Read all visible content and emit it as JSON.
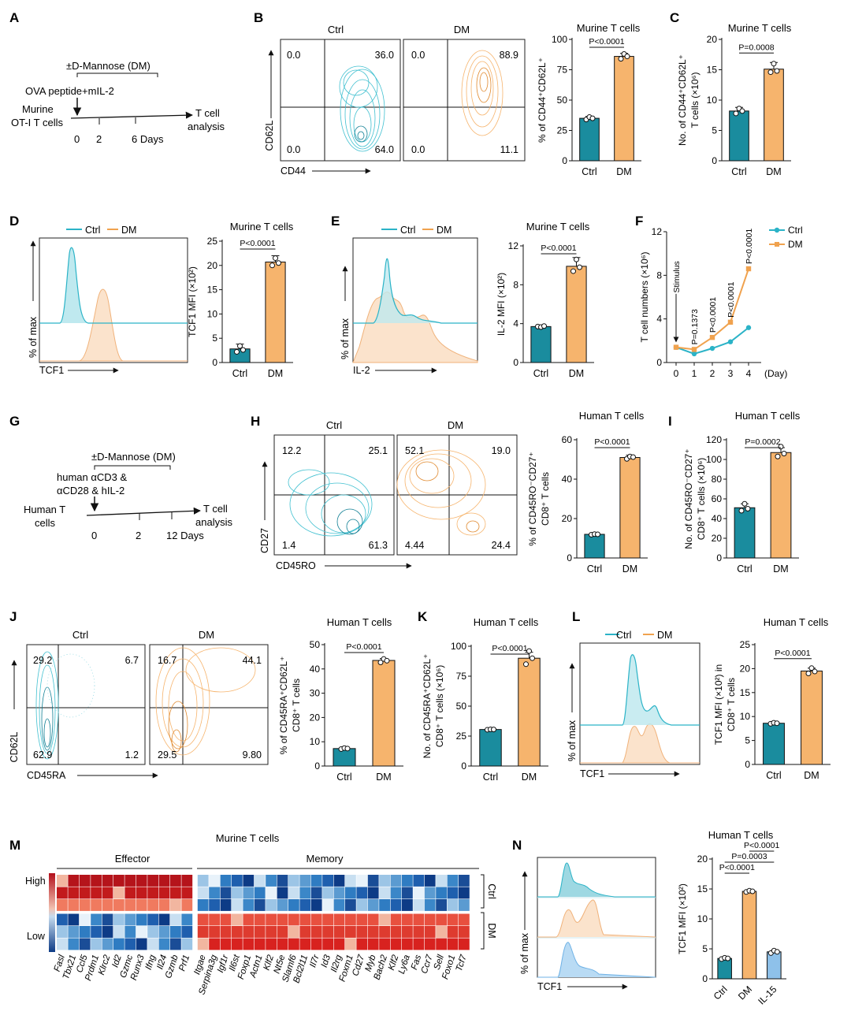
{
  "colors": {
    "ctrl": "#1a8c9e",
    "dm": "#f6b46d",
    "il15": "#8ec1ea",
    "ctrl_curve": "#2bb3c7",
    "dm_curve": "#f0a24e",
    "heat_high": "#c01818",
    "heat_low": "#0e3d8a"
  },
  "panels": {
    "A": {
      "letter": "A",
      "treatment": "±D-Mannose (DM)",
      "stimulus": "OVA peptide+mIL-2",
      "cells_line1": "Murine",
      "cells_line2": "OT-I T cells",
      "outcome_line1": "T cell",
      "outcome_line2": "analysis",
      "ticks": [
        "0",
        "2",
        "6 Days"
      ]
    },
    "B": {
      "letter": "B",
      "flow_titles": [
        "Ctrl",
        "DM"
      ],
      "xlab": "CD44",
      "ylab": "CD62L",
      "quadrants": [
        [
          "0.0",
          "36.0",
          "0.0",
          "64.0"
        ],
        [
          "0.0",
          "88.9",
          "0.0",
          "11.1"
        ]
      ]
    },
    "C": {
      "letter": "C"
    },
    "D": {
      "letter": "D",
      "legend": [
        "Ctrl",
        "DM"
      ],
      "xlab": "TCF1",
      "ylab": "% of max"
    },
    "E": {
      "letter": "E",
      "legend": [
        "Ctrl",
        "DM"
      ],
      "xlab": "IL-2",
      "ylab": "% of max"
    },
    "F": {
      "letter": "F"
    },
    "G": {
      "letter": "G",
      "treatment": "±D-Mannose (DM)",
      "stim1": "human αCD3 &",
      "stim2": "αCD28 & hIL-2",
      "cells_line1": "Human T",
      "cells_line2": "cells",
      "outcome_line1": "T cell",
      "outcome_line2": "analysis",
      "ticks": [
        "0",
        "2",
        "12  Days"
      ]
    },
    "H": {
      "letter": "H",
      "flow_titles": [
        "Ctrl",
        "DM"
      ],
      "xlab": "CD45RO",
      "ylab": "CD27",
      "quadrants": [
        [
          "12.2",
          "25.1",
          "1.4",
          "61.3"
        ],
        [
          "52.1",
          "19.0",
          "4.44",
          "24.4"
        ]
      ]
    },
    "I": {
      "letter": "I"
    },
    "J": {
      "letter": "J",
      "flow_titles": [
        "Ctrl",
        "DM"
      ],
      "xlab": "CD45RA",
      "ylab": "CD62L",
      "quadrants": [
        [
          "29.2",
          "6.7",
          "62.9",
          "1.2"
        ],
        [
          "16.7",
          "44.1",
          "29.5",
          "9.80"
        ]
      ]
    },
    "K": {
      "letter": "K"
    },
    "L": {
      "letter": "L",
      "legend": [
        "Ctrl",
        "DM"
      ],
      "xlab": "TCF1",
      "ylab": "% of max"
    },
    "M": {
      "letter": "M",
      "title": "Murine T cells",
      "effector_label": "Effector",
      "memory_label": "Memory",
      "high_label": "High",
      "low_label": "Low",
      "row_labels": [
        "Ctrl",
        "DM"
      ],
      "effector_genes": [
        "Fasl",
        "Tbx21",
        "Ccl5",
        "Prdm1",
        "Klrc2",
        "Id2",
        "Gzmc",
        "Runx3",
        "Ifng",
        "Il24",
        "Gzmb",
        "Prf1"
      ],
      "memory_genes": [
        "Itgae",
        "Serpina3g",
        "Igf1r",
        "Il6st",
        "Foxp1",
        "Actn1",
        "Klf2",
        "Nt5e",
        "Slamf6",
        "Bcl2l11",
        "Il7r",
        "Id3",
        "Il2rg",
        "Foxm1",
        "Cd27",
        "Myb",
        "Bach2",
        "Klf2",
        "Ly6a",
        "Fas",
        "Ccr7",
        "Sell",
        "Foxo1",
        "Tcf7"
      ]
    },
    "N": {
      "letter": "N",
      "xlab": "TCF1",
      "ylab": "% of max"
    }
  },
  "chart_data": [
    {
      "id": "B-bar",
      "type": "bar",
      "title": "Murine T cells",
      "ylabel": "% of CD44⁺CD62L⁺",
      "categories": [
        "Ctrl",
        "DM"
      ],
      "values": [
        35,
        86
      ],
      "points": [
        [
          34,
          36,
          35
        ],
        [
          84,
          88,
          86
        ]
      ],
      "errors": [
        1.5,
        2.5
      ],
      "ylim": [
        0,
        100
      ],
      "yticks": [
        "0",
        "25",
        "50",
        "75",
        "100"
      ],
      "pvalues": [
        {
          "text": "P<0.0001",
          "from": 0,
          "to": 1
        }
      ]
    },
    {
      "id": "C-bar",
      "type": "bar",
      "title": "Murine T cells",
      "ylabel": "No. of CD44⁺CD62L⁺",
      "ylabel2": "T cells (×10⁶)",
      "categories": [
        "Ctrl",
        "DM"
      ],
      "values": [
        8.2,
        15.1
      ],
      "points": [
        [
          7.8,
          8.6,
          8.2
        ],
        [
          14.6,
          16.0,
          14.8
        ]
      ],
      "errors": [
        0.6,
        1.1
      ],
      "ylim": [
        0,
        20
      ],
      "yticks": [
        "0",
        "5",
        "10",
        "15",
        "20"
      ],
      "pvalues": [
        {
          "text": "P=0.0008",
          "from": 0,
          "to": 1
        }
      ]
    },
    {
      "id": "D-bar",
      "type": "bar",
      "title": "Murine T cells",
      "ylabel": "TCF1 MFI (×10²)",
      "categories": [
        "Ctrl",
        "DM"
      ],
      "values": [
        2.8,
        20.7
      ],
      "points": [
        [
          2.2,
          3.4,
          2.6
        ],
        [
          20.0,
          21.5,
          20.5
        ]
      ],
      "errors": [
        1.0,
        1.3
      ],
      "ylim": [
        0,
        25
      ],
      "yticks": [
        "0",
        "5",
        "10",
        "15",
        "20",
        "25"
      ],
      "pvalues": [
        {
          "text": "P<0.0001",
          "from": 0,
          "to": 1
        }
      ]
    },
    {
      "id": "E-bar",
      "type": "bar",
      "title": "Murine T cells",
      "ylabel": "IL-2 MFI (×10²)",
      "categories": [
        "Ctrl",
        "DM"
      ],
      "values": [
        3.7,
        9.9
      ],
      "points": [
        [
          3.7,
          3.65,
          3.75
        ],
        [
          9.4,
          10.6,
          9.8
        ]
      ],
      "errors": [
        0.1,
        0.9
      ],
      "ylim": [
        0,
        12
      ],
      "yticks": [
        "0",
        "4",
        "8",
        "12"
      ],
      "pvalues": [
        {
          "text": "P<0.0001",
          "from": 0,
          "to": 1
        }
      ]
    },
    {
      "id": "F-line",
      "type": "line",
      "ylabel": "T cell numbers (×10⁶)",
      "x": [
        0,
        1,
        2,
        3,
        4
      ],
      "xticks": [
        "0",
        "1",
        "2",
        "3",
        "4"
      ],
      "xunit": "(Day)",
      "series": [
        {
          "name": "Ctrl",
          "values": [
            1.4,
            0.8,
            1.3,
            1.9,
            3.2
          ]
        },
        {
          "name": "DM",
          "values": [
            1.4,
            1.2,
            2.3,
            3.7,
            8.6
          ]
        }
      ],
      "ylim": [
        0,
        12
      ],
      "yticks": [
        "0",
        "4",
        "8",
        "12"
      ],
      "annotations": [
        "P=0.1373",
        "P<0.0001",
        "P<0.0001",
        "P<0.0001"
      ],
      "stimulus": "Stimulus"
    },
    {
      "id": "H-bar",
      "type": "bar",
      "title": "Human T cells",
      "ylabel": "% of CD45RO⁻CD27⁺",
      "ylabel2": "CD8⁺ T cells",
      "categories": [
        "Ctrl",
        "DM"
      ],
      "values": [
        12,
        51
      ],
      "points": [
        [
          11.8,
          12.1,
          12.0
        ],
        [
          50.3,
          51.5,
          51.2
        ]
      ],
      "errors": [
        0.3,
        1.2
      ],
      "ylim": [
        0,
        60
      ],
      "yticks": [
        "0",
        "20",
        "40",
        "60"
      ],
      "pvalues": [
        {
          "text": "P<0.0001",
          "from": 0,
          "to": 1
        }
      ]
    },
    {
      "id": "I-bar",
      "type": "bar",
      "title": "Human T cells",
      "ylabel": "No. of CD45RO⁻CD27⁺",
      "ylabel2": "CD8⁺ T cells (×10⁶)",
      "categories": [
        "Ctrl",
        "DM"
      ],
      "values": [
        51,
        107
      ],
      "points": [
        [
          48,
          55,
          50
        ],
        [
          103,
          113,
          106
        ]
      ],
      "errors": [
        4,
        5
      ],
      "ylim": [
        0,
        120
      ],
      "yticks": [
        "0",
        "20",
        "40",
        "60",
        "80",
        "100",
        "120"
      ],
      "pvalues": [
        {
          "text": "P=0.0002",
          "from": 0,
          "to": 1
        }
      ]
    },
    {
      "id": "J-bar",
      "type": "bar",
      "title": "Human T cells",
      "ylabel": "% of CD45RA⁺CD62L⁺",
      "ylabel2": "CD8⁺ T cells",
      "categories": [
        "Ctrl",
        "DM"
      ],
      "values": [
        7.2,
        43.5
      ],
      "points": [
        [
          7.0,
          7.4,
          7.2
        ],
        [
          42.7,
          44.1,
          43.4
        ]
      ],
      "errors": [
        0.3,
        0.8
      ],
      "ylim": [
        0,
        50
      ],
      "yticks": [
        "0",
        "10",
        "20",
        "30",
        "40",
        "50"
      ],
      "pvalues": [
        {
          "text": "P<0.0001",
          "from": 0,
          "to": 1
        }
      ]
    },
    {
      "id": "K-bar",
      "type": "bar",
      "title": "Human T cells",
      "ylabel": "No. of CD45RA⁺CD62L⁺",
      "ylabel2": "CD8⁺ T cells (×10⁶)",
      "categories": [
        "Ctrl",
        "DM"
      ],
      "values": [
        30.5,
        90
      ],
      "points": [
        [
          30.3,
          30.6,
          30.5
        ],
        [
          85,
          96,
          90
        ]
      ],
      "errors": [
        0.4,
        5
      ],
      "ylim": [
        0,
        100
      ],
      "yticks": [
        "0",
        "25",
        "50",
        "75",
        "100"
      ],
      "pvalues": [
        {
          "text": "P<0.0001",
          "from": 0,
          "to": 1
        }
      ]
    },
    {
      "id": "L-bar",
      "type": "bar",
      "title": "Human T cells",
      "ylabel": "TCF1 MFI (×10²) in",
      "ylabel2": "CD8⁺ T cells",
      "categories": [
        "Ctrl",
        "DM"
      ],
      "values": [
        8.6,
        19.5
      ],
      "points": [
        [
          8.5,
          8.7,
          8.6
        ],
        [
          19.0,
          20.1,
          19.4
        ]
      ],
      "errors": [
        0.15,
        0.6
      ],
      "ylim": [
        0,
        25
      ],
      "yticks": [
        "0",
        "5",
        "10",
        "15",
        "20",
        "25"
      ],
      "pvalues": [
        {
          "text": "P<0.0001",
          "from": 0,
          "to": 1
        }
      ]
    },
    {
      "id": "N-bar",
      "type": "bar",
      "title": "Human T cells",
      "ylabel": "TCF1 MFI (×10²)",
      "categories": [
        "Ctrl",
        "DM",
        "IL-15"
      ],
      "values": [
        3.4,
        14.6,
        4.5
      ],
      "points": [
        [
          3.3,
          3.5,
          3.4
        ],
        [
          14.5,
          14.7,
          14.6
        ],
        [
          4.3,
          4.7,
          4.5
        ]
      ],
      "errors": [
        0.1,
        0.1,
        0.2
      ],
      "ylim": [
        0,
        20
      ],
      "yticks": [
        "0",
        "5",
        "10",
        "15",
        "20"
      ],
      "pvalues": [
        {
          "text": "P<0.0001",
          "from": 0,
          "to": 1
        },
        {
          "text": "P=0.0003",
          "from": 0,
          "to": 2
        },
        {
          "text": "P<0.0001",
          "from": 1,
          "to": 2
        }
      ]
    }
  ]
}
